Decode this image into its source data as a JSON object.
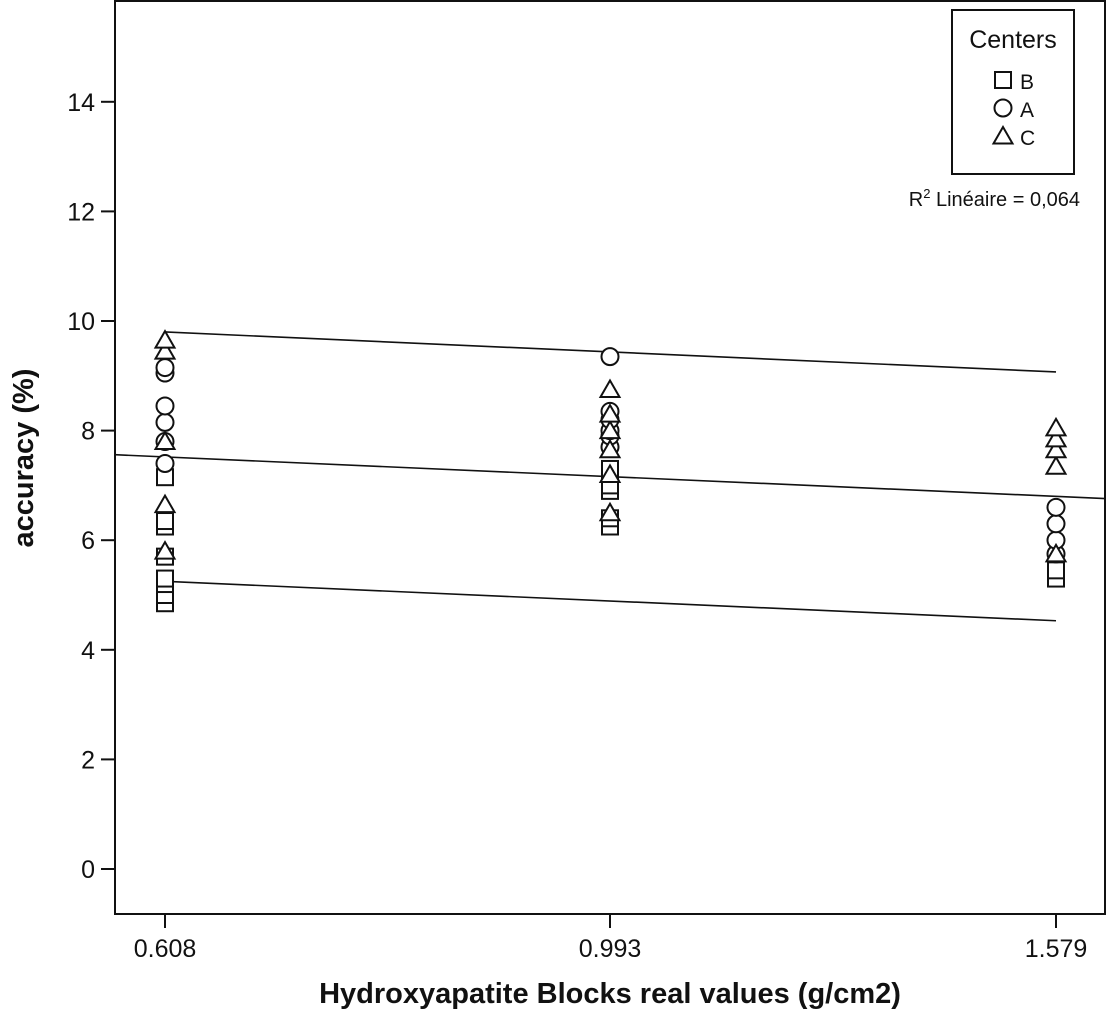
{
  "chart_data": {
    "type": "scatter",
    "title": "",
    "xlabel": "Hydroxyapatite Blocks real values (g/cm2)",
    "ylabel": "accuracy (%)",
    "x_categories": [
      "0.608",
      "0.993",
      "1.579"
    ],
    "ylim": [
      -0.8,
      15.8
    ],
    "y_ticks": [
      0,
      2,
      4,
      6,
      8,
      10,
      12,
      14
    ],
    "grid": false,
    "legend": {
      "title": "Centers",
      "placement": "top-right",
      "entries": [
        {
          "label": "B",
          "marker": "square"
        },
        {
          "label": "A",
          "marker": "circle"
        },
        {
          "label": "C",
          "marker": "triangle"
        }
      ]
    },
    "annotation": {
      "prefix": "R",
      "sup": "2",
      "suffix": "  Linéaire = 0,064"
    },
    "series": [
      {
        "name": "B",
        "marker": "square",
        "points": [
          {
            "x": "0.608",
            "y": 4.85
          },
          {
            "x": "0.608",
            "y": 5.0
          },
          {
            "x": "0.608",
            "y": 5.2
          },
          {
            "x": "0.608",
            "y": 5.3
          },
          {
            "x": "0.608",
            "y": 5.7
          },
          {
            "x": "0.608",
            "y": 6.25
          },
          {
            "x": "0.608",
            "y": 6.35
          },
          {
            "x": "0.608",
            "y": 7.15
          },
          {
            "x": "0.993",
            "y": 6.25
          },
          {
            "x": "0.993",
            "y": 6.4
          },
          {
            "x": "0.993",
            "y": 6.9
          },
          {
            "x": "0.993",
            "y": 7.0
          },
          {
            "x": "0.993",
            "y": 7.3
          },
          {
            "x": "1.579",
            "y": 5.3
          },
          {
            "x": "1.579",
            "y": 5.45
          }
        ]
      },
      {
        "name": "A",
        "marker": "circle",
        "points": [
          {
            "x": "0.608",
            "y": 7.4
          },
          {
            "x": "0.608",
            "y": 7.8
          },
          {
            "x": "0.608",
            "y": 8.15
          },
          {
            "x": "0.608",
            "y": 8.45
          },
          {
            "x": "0.608",
            "y": 9.05
          },
          {
            "x": "0.608",
            "y": 9.15
          },
          {
            "x": "0.993",
            "y": 7.7
          },
          {
            "x": "0.993",
            "y": 7.9
          },
          {
            "x": "0.993",
            "y": 8.0
          },
          {
            "x": "0.993",
            "y": 8.2
          },
          {
            "x": "0.993",
            "y": 8.35
          },
          {
            "x": "0.993",
            "y": 9.35
          },
          {
            "x": "1.579",
            "y": 5.75
          },
          {
            "x": "1.579",
            "y": 6.0
          },
          {
            "x": "1.579",
            "y": 6.3
          },
          {
            "x": "1.579",
            "y": 6.6
          }
        ]
      },
      {
        "name": "C",
        "marker": "triangle",
        "points": [
          {
            "x": "0.608",
            "y": 5.8
          },
          {
            "x": "0.608",
            "y": 6.65
          },
          {
            "x": "0.608",
            "y": 7.8
          },
          {
            "x": "0.608",
            "y": 9.45
          },
          {
            "x": "0.608",
            "y": 9.65
          },
          {
            "x": "0.993",
            "y": 6.5
          },
          {
            "x": "0.993",
            "y": 7.2
          },
          {
            "x": "0.993",
            "y": 7.65
          },
          {
            "x": "0.993",
            "y": 8.0
          },
          {
            "x": "0.993",
            "y": 8.3
          },
          {
            "x": "0.993",
            "y": 8.75
          },
          {
            "x": "1.579",
            "y": 5.75
          },
          {
            "x": "1.579",
            "y": 7.35
          },
          {
            "x": "1.579",
            "y": 7.65
          },
          {
            "x": "1.579",
            "y": 7.85
          },
          {
            "x": "1.579",
            "y": 8.05
          }
        ]
      }
    ],
    "lines": [
      {
        "name": "upper",
        "x0": "0.608",
        "y0": 9.8,
        "x1": "1.579",
        "y1": 9.07
      },
      {
        "name": "fit",
        "x0": "edge-left",
        "y0": 7.56,
        "x1": "edge-right",
        "y1": 6.76
      },
      {
        "name": "lower",
        "x0": "0.608",
        "y0": 5.25,
        "x1": "1.579",
        "y1": 4.53
      }
    ]
  }
}
